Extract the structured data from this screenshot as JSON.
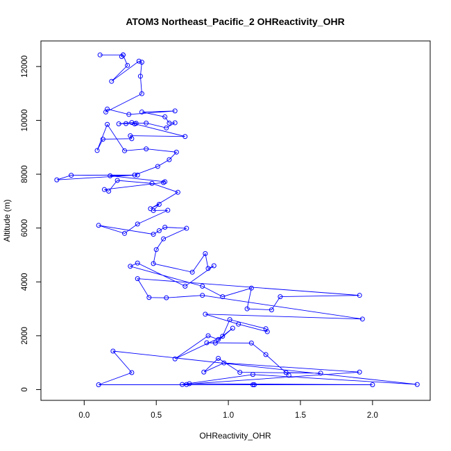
{
  "chart_data": {
    "type": "line",
    "title": "ATOM3 Northeast_Pacific_2 OHReactivity_OHR",
    "xlabel": "OHReactivity_OHR",
    "ylabel": "Altitude (m)",
    "xlim": [
      -0.3,
      2.4
    ],
    "ylim": [
      -400,
      12950
    ],
    "x_ticks": [
      {
        "value": 0.0,
        "label": "0.0"
      },
      {
        "value": 0.5,
        "label": "0.5"
      },
      {
        "value": 1.0,
        "label": "1.0"
      },
      {
        "value": 1.5,
        "label": "1.5"
      },
      {
        "value": 2.0,
        "label": "2.0"
      }
    ],
    "y_ticks": [
      {
        "value": 0,
        "label": "0"
      },
      {
        "value": 2000,
        "label": "2000"
      },
      {
        "value": 4000,
        "label": "4000"
      },
      {
        "value": 6000,
        "label": "6000"
      },
      {
        "value": 8000,
        "label": "8000"
      },
      {
        "value": 10000,
        "label": "10000"
      },
      {
        "value": 12000,
        "label": "12000"
      }
    ],
    "grid": false,
    "legend": "none",
    "marker": "open-circle",
    "color": "#0000ff",
    "series": [
      {
        "x": [
          0.11,
          0.27,
          0.26,
          0.27,
          0.3,
          0.19,
          0.38,
          0.4,
          0.39,
          0.4,
          0.15,
          0.16,
          0.31,
          0.63,
          0.4,
          0.56,
          0.59,
          0.63,
          0.57,
          0.43,
          0.36,
          0.33,
          0.24,
          0.29,
          0.35,
          0.7,
          0.32,
          0.33,
          0.13,
          0.09,
          0.16,
          0.28,
          0.43,
          0.64,
          0.59,
          0.51,
          0.35,
          -0.09,
          -0.19,
          0.37,
          0.18,
          0.56,
          0.55,
          0.14,
          0.17,
          0.23,
          0.47,
          0.65,
          0.46,
          0.52,
          0.48,
          0.58,
          0.37,
          0.28,
          0.1,
          0.48,
          0.52,
          0.56,
          0.71,
          0.55,
          0.5,
          0.48,
          0.75,
          0.84,
          0.86,
          0.9,
          0.7,
          0.37,
          0.32,
          0.82,
          0.96,
          1.16,
          1.13,
          1.3,
          1.36,
          1.91,
          0.37,
          0.45,
          0.57,
          0.82,
          1.93,
          0.84,
          1.07,
          1.27,
          1.26,
          1.01,
          0.96,
          0.63,
          0.86,
          0.93,
          1.03,
          0.91,
          0.85,
          1.16,
          1.26,
          1.42,
          1.4,
          1.64,
          1.08,
          0.93,
          0.83,
          0.97,
          1.91,
          0.68,
          1.17,
          2.31,
          0.2,
          0.33,
          0.1,
          1.17,
          1.18,
          2.0,
          0.73,
          0.71
        ],
        "y": [
          12430,
          12430,
          12370,
          12430,
          12040,
          11450,
          12200,
          12160,
          11640,
          10990,
          10310,
          10420,
          10220,
          10350,
          10310,
          10130,
          9900,
          9910,
          9720,
          9900,
          9890,
          9920,
          9870,
          9880,
          9870,
          9400,
          9430,
          9320,
          9300,
          8880,
          9850,
          8870,
          8940,
          8820,
          8540,
          8290,
          7970,
          7960,
          7790,
          7970,
          7940,
          7720,
          7690,
          7430,
          7370,
          7770,
          7660,
          7330,
          6720,
          6880,
          6650,
          6660,
          6150,
          5800,
          6100,
          5770,
          5900,
          6030,
          5990,
          5600,
          5200,
          4680,
          4360,
          5050,
          4500,
          4600,
          3840,
          4700,
          4580,
          3840,
          3450,
          3770,
          3000,
          2960,
          3450,
          3500,
          4120,
          3420,
          3410,
          3500,
          2620,
          2800,
          2430,
          2150,
          2260,
          2600,
          1980,
          1140,
          2000,
          1860,
          2280,
          1730,
          1740,
          1730,
          1300,
          530,
          630,
          610,
          640,
          1160,
          650,
          990,
          650,
          190,
          560,
          190,
          1430,
          630,
          180,
          180,
          180,
          180,
          220,
          190
        ]
      }
    ]
  }
}
